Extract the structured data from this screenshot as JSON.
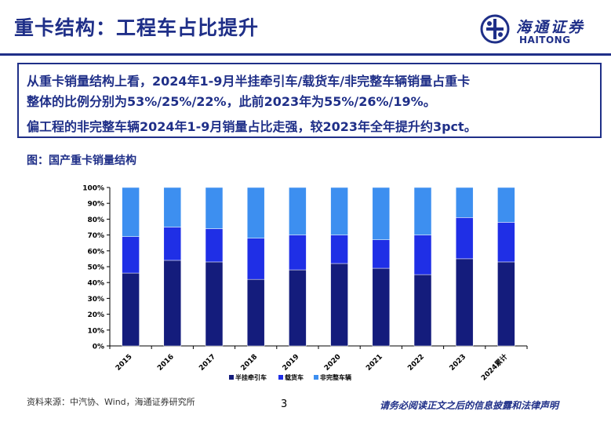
{
  "header": {
    "title": "重卡结构：工程车占比提升",
    "logo_cn": "海通证券",
    "logo_en": "HAITONG"
  },
  "summary": {
    "line1": "从重卡销量结构上看，2024年1-9月半挂牵引车/载货车/非完整车辆销量占重卡",
    "line2": "整体的比例分别为53%/25%/22%，此前2023年为55%/26%/19%。",
    "line3": "偏工程的非完整车辆2024年1-9月销量占比走强，较2023年全年提升约3pct。"
  },
  "figure": {
    "title": "图：国产重卡销量结构"
  },
  "chart_data": {
    "type": "bar",
    "stacked": true,
    "categories": [
      "2015",
      "2016",
      "2017",
      "2018",
      "2019",
      "2020",
      "2021",
      "2022",
      "2023",
      "2024累计"
    ],
    "series": [
      {
        "name": "半挂牵引车",
        "color": "#141c7c",
        "values": [
          46,
          54,
          53,
          42,
          48,
          52,
          49,
          45,
          55,
          53
        ]
      },
      {
        "name": "载货车",
        "color": "#1f2fe6",
        "values": [
          23,
          21,
          21,
          26,
          22,
          18,
          18,
          25,
          26,
          25
        ]
      },
      {
        "name": "非完整车辆",
        "color": "#3d8ff0",
        "values": [
          31,
          25,
          26,
          32,
          30,
          30,
          33,
          30,
          19,
          22
        ]
      }
    ],
    "ylim": [
      0,
      100
    ],
    "yticks": [
      "0%",
      "10%",
      "20%",
      "30%",
      "40%",
      "50%",
      "60%",
      "70%",
      "80%",
      "90%",
      "100%"
    ],
    "grid": false,
    "legend_position": "bottom"
  },
  "footer": {
    "source": "资料来源：中汽协、Wind，海通证券研究所",
    "page": "3",
    "disclaimer": "请务必阅读正文之后的信息披露和法律声明"
  }
}
